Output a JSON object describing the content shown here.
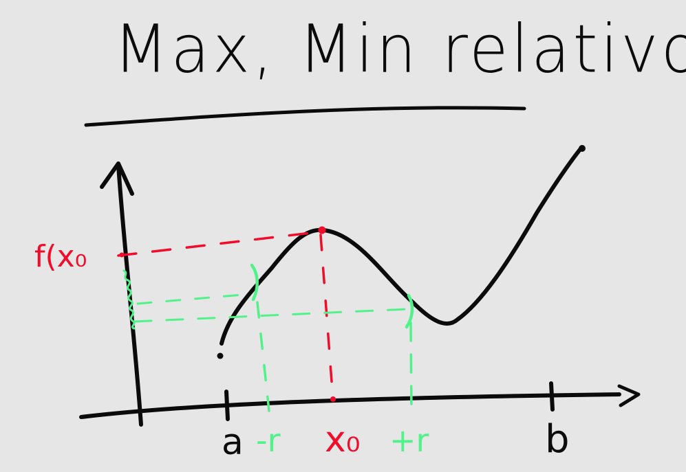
{
  "title": "Max, Min relativo",
  "labels": {
    "f_x0": "f(x₀",
    "a": "a",
    "minus_r": "-r",
    "x0": "x₀",
    "plus_r": "+r",
    "b": "b"
  },
  "colors": {
    "background": "#e6e6e6",
    "ink": "#0b0b0b",
    "red": "#f00d2c",
    "green": "#52f28a"
  }
}
